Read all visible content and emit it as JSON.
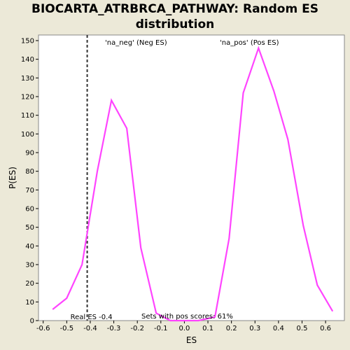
{
  "title_line1": "BIOCARTA_ATRBRCA_PATHWAY: Random ES",
  "title_line2": "distribution",
  "colors": {
    "background": "#ece9d8",
    "plot_bg": "#ffffff",
    "curve": "#ff44ff",
    "neg_label": "#3333cc",
    "pos_label": "#ff2222"
  },
  "chart_data": {
    "type": "line",
    "xlabel": "ES",
    "ylabel": "P(ES)",
    "xlim": [
      -0.62,
      0.68
    ],
    "ylim": [
      0,
      153
    ],
    "xticks": [
      -0.6,
      -0.5,
      -0.4,
      -0.3,
      -0.2,
      -0.1,
      0.0,
      0.1,
      0.2,
      0.3,
      0.4,
      0.5,
      0.6
    ],
    "xtick_labels": [
      "-0.6",
      "-0.5",
      "-0.4",
      "-0.3",
      "-0.2",
      "-0.1",
      "0.0",
      "0.1",
      "0.2",
      "0.3",
      "0.4",
      "0.5",
      "0.6"
    ],
    "yticks": [
      0,
      10,
      20,
      30,
      40,
      50,
      60,
      70,
      80,
      90,
      100,
      110,
      120,
      130,
      140,
      150
    ],
    "ytick_labels": [
      "0",
      "10",
      "20",
      "30",
      "40",
      "50",
      "60",
      "70",
      "80",
      "90",
      "100",
      "110",
      "120",
      "130",
      "140",
      "150"
    ],
    "series": [
      {
        "x": [
          -0.56,
          -0.5,
          -0.435,
          -0.37,
          -0.31,
          -0.245,
          -0.185,
          -0.12,
          -0.06,
          0.0,
          0.06,
          0.13,
          0.19,
          0.25,
          0.315,
          0.38,
          0.44,
          0.505,
          0.565,
          0.63
        ],
        "y": [
          6,
          12,
          30,
          80,
          118,
          103,
          39,
          4,
          0,
          0,
          0,
          2,
          44,
          122,
          146,
          123,
          97,
          51,
          19,
          5
        ]
      }
    ],
    "real_es": -0.413,
    "annotations": {
      "neg": "'na_neg' (Neg ES)",
      "pos": "'na_pos' (Pos ES)",
      "real_es": "Real ES -0.4",
      "pos_scores": "Sets with pos scores: 61%"
    }
  }
}
